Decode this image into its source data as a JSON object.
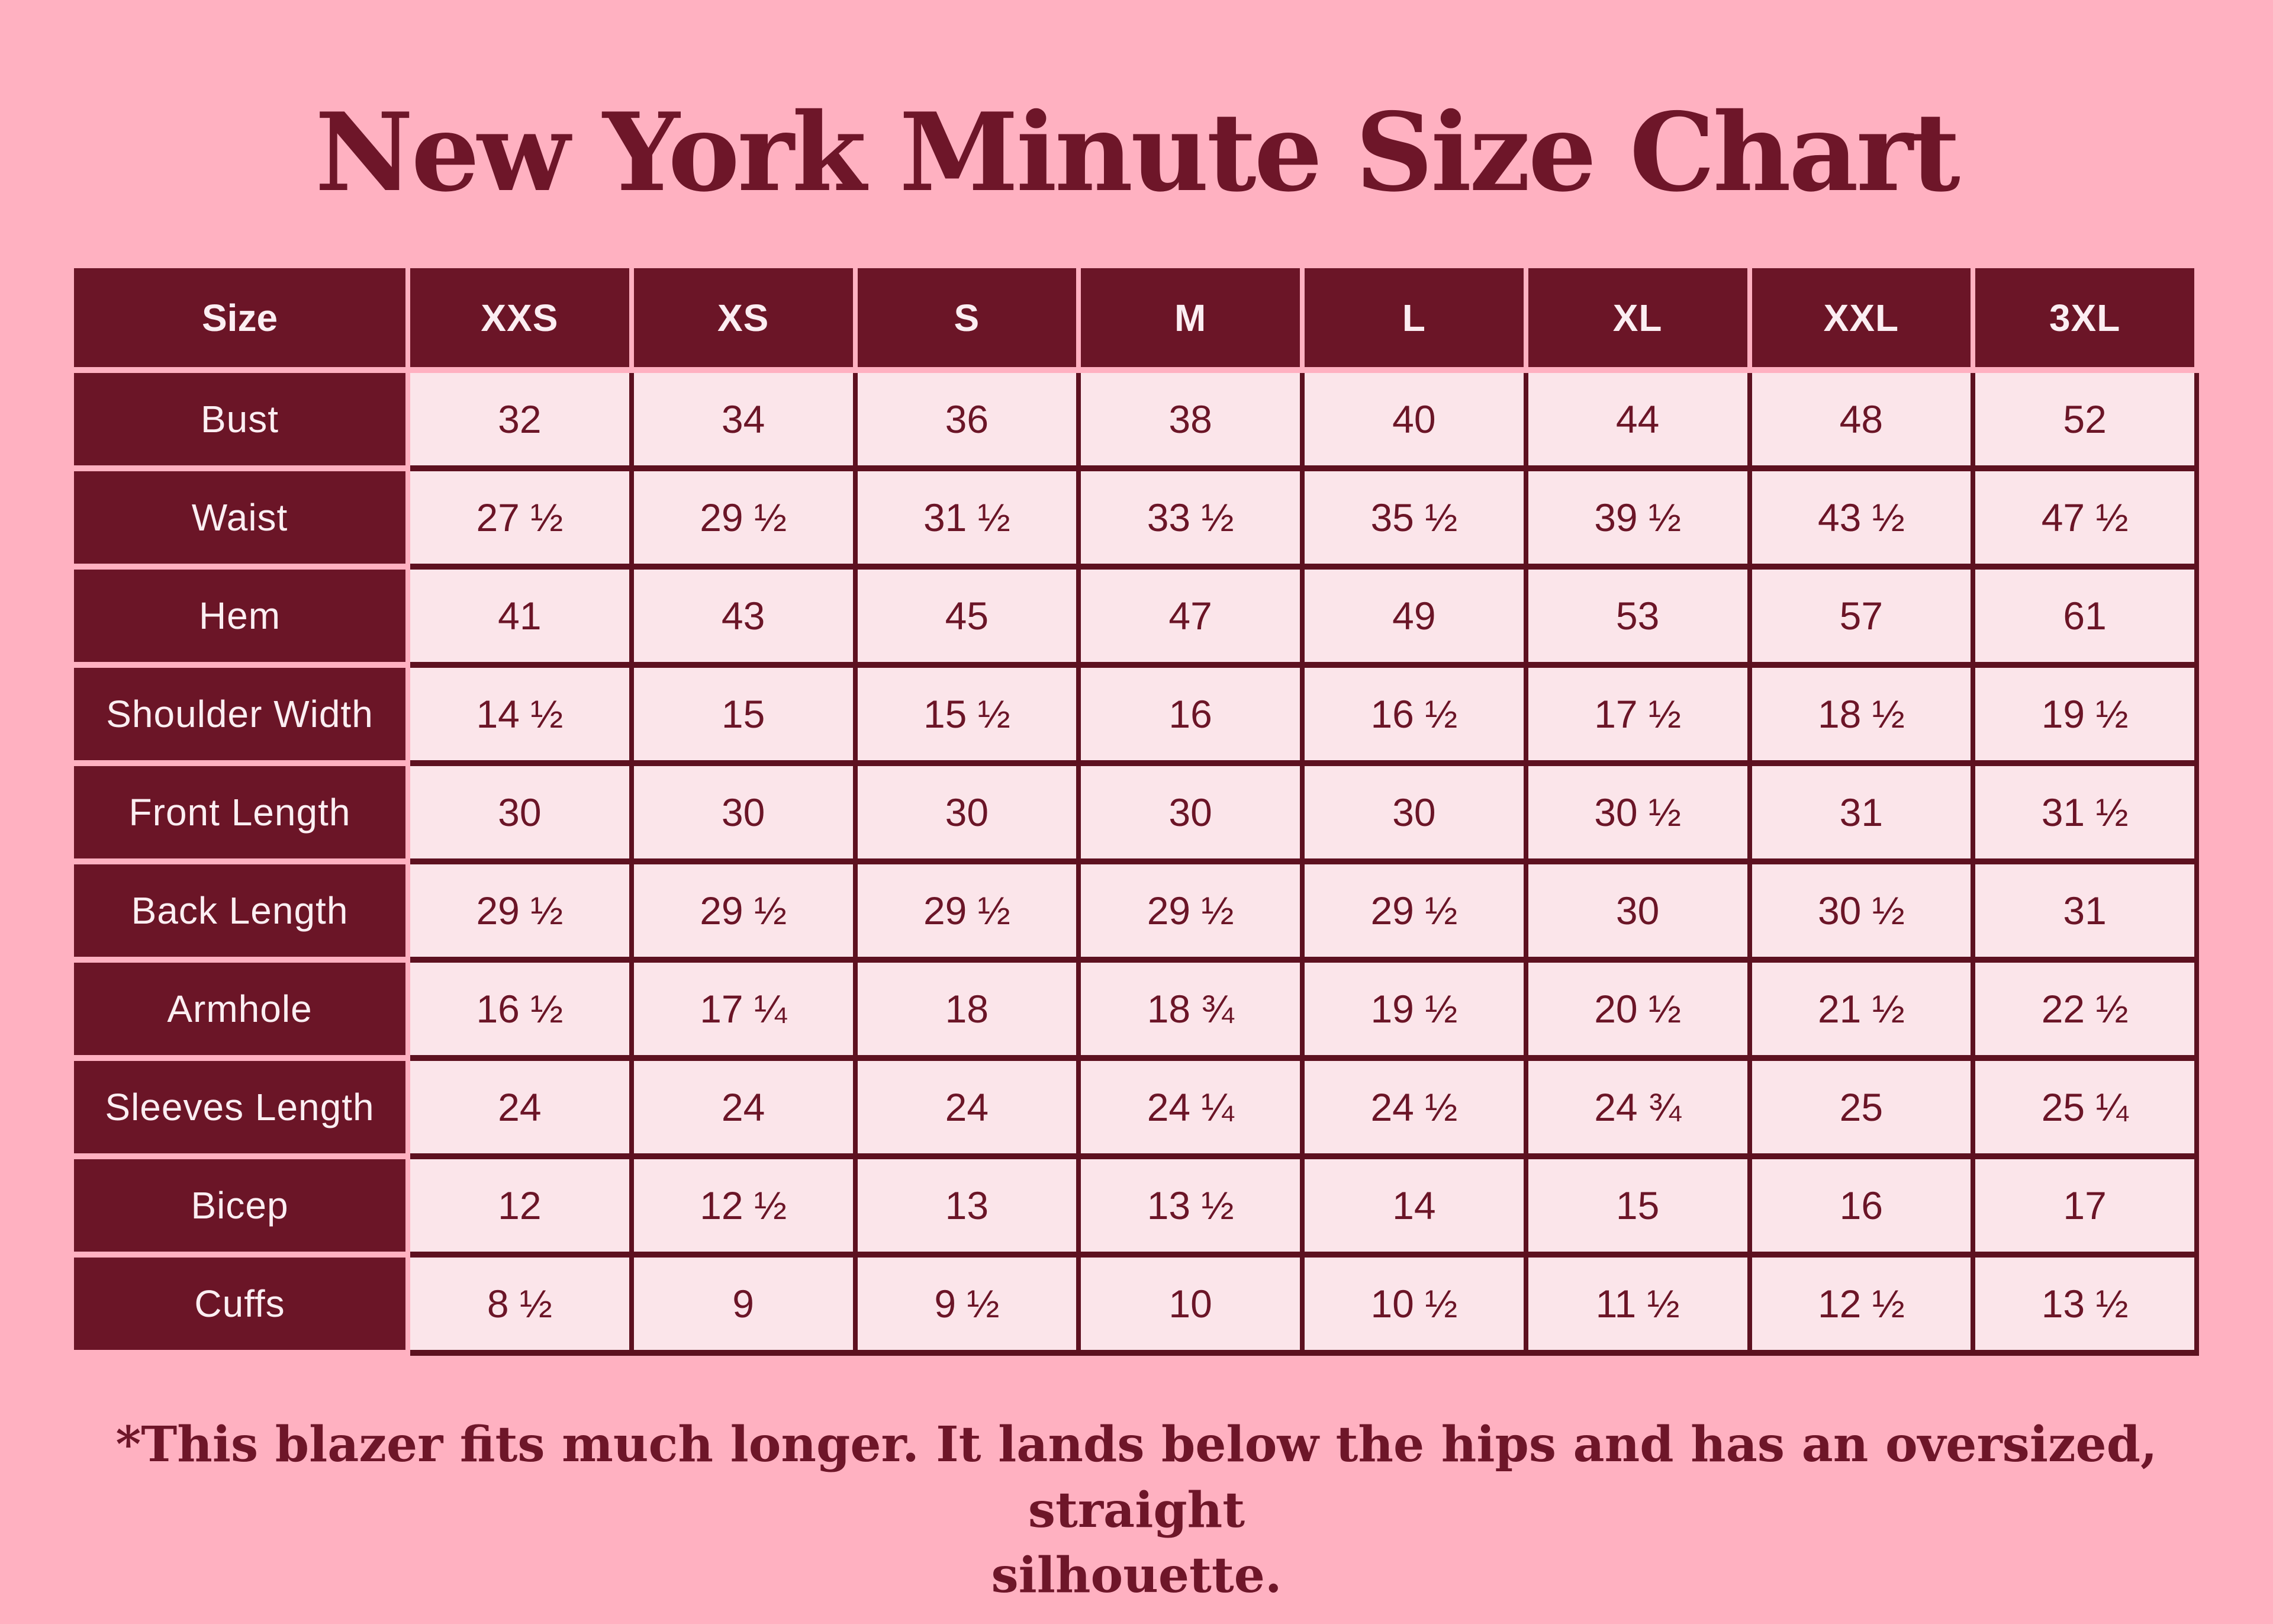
{
  "page": {
    "title": "New York Minute Size Chart"
  },
  "footnote": {
    "lines": [
      "*This blazer fits much longer. It lands below the hips and has an oversized, straight",
      "silhouette."
    ]
  },
  "colors": {
    "background_pink": "#ffb1c1",
    "maroon_header_bg": "#6b1527",
    "dark_border": "#5d1120",
    "light_cell_bg": "#fbe5ea",
    "title_text": "#6e1629",
    "header_text": "#fbeef2"
  },
  "table": {
    "corner_label": "Size",
    "size_headers": [
      "XXS",
      "XS",
      "S",
      "M",
      "L",
      "XL",
      "XXL",
      "3XL"
    ],
    "rows": [
      {
        "label": "Bust",
        "values": [
          "32",
          "34",
          "36",
          "38",
          "40",
          "44",
          "48",
          "52"
        ]
      },
      {
        "label": "Waist",
        "values": [
          "27 ½",
          "29 ½",
          "31 ½",
          "33 ½",
          "35 ½",
          "39 ½",
          "43 ½",
          "47 ½"
        ]
      },
      {
        "label": "Hem",
        "values": [
          "41",
          "43",
          "45",
          "47",
          "49",
          "53",
          "57",
          "61"
        ]
      },
      {
        "label": "Shoulder Width",
        "values": [
          "14 ½",
          "15",
          "15 ½",
          "16",
          "16 ½",
          "17 ½",
          "18 ½",
          "19 ½"
        ]
      },
      {
        "label": "Front Length",
        "values": [
          "30",
          "30",
          "30",
          "30",
          "30",
          "30 ½",
          "31",
          "31 ½"
        ]
      },
      {
        "label": "Back Length",
        "values": [
          "29 ½",
          "29 ½",
          "29 ½",
          "29 ½",
          "29 ½",
          "30",
          "30 ½",
          "31"
        ]
      },
      {
        "label": "Armhole",
        "values": [
          "16 ½",
          "17 ¼",
          "18",
          "18 ¾",
          "19 ½",
          "20 ½",
          "21 ½",
          "22 ½"
        ]
      },
      {
        "label": "Sleeves Length",
        "values": [
          "24",
          "24",
          "24",
          "24 ¼",
          "24 ½",
          "24 ¾",
          "25",
          "25 ¼"
        ]
      },
      {
        "label": "Bicep",
        "values": [
          "12",
          "12 ½",
          "13",
          "13 ½",
          "14",
          "15",
          "16",
          "17"
        ]
      },
      {
        "label": "Cuffs",
        "values": [
          "8 ½",
          "9",
          "9 ½",
          "10",
          "10 ½",
          "11 ½",
          "12 ½",
          "13 ½"
        ]
      }
    ]
  },
  "chart_data": {
    "type": "table",
    "title": "New York Minute Size Chart",
    "columns": [
      "Size",
      "XXS",
      "XS",
      "S",
      "M",
      "L",
      "XL",
      "XXL",
      "3XL"
    ],
    "rows": [
      [
        "Bust",
        "32",
        "34",
        "36",
        "38",
        "40",
        "44",
        "48",
        "52"
      ],
      [
        "Waist",
        "27 ½",
        "29 ½",
        "31 ½",
        "33 ½",
        "35 ½",
        "39 ½",
        "43 ½",
        "47 ½"
      ],
      [
        "Hem",
        "41",
        "43",
        "45",
        "47",
        "49",
        "53",
        "57",
        "61"
      ],
      [
        "Shoulder Width",
        "14 ½",
        "15",
        "15 ½",
        "16",
        "16 ½",
        "17 ½",
        "18 ½",
        "19 ½"
      ],
      [
        "Front Length",
        "30",
        "30",
        "30",
        "30",
        "30",
        "30 ½",
        "31",
        "31 ½"
      ],
      [
        "Back Length",
        "29 ½",
        "29 ½",
        "29 ½",
        "29 ½",
        "29 ½",
        "30",
        "30 ½",
        "31"
      ],
      [
        "Armhole",
        "16 ½",
        "17 ¼",
        "18",
        "18 ¾",
        "19 ½",
        "20 ½",
        "21 ½",
        "22 ½"
      ],
      [
        "Sleeves Length",
        "24",
        "24",
        "24",
        "24 ¼",
        "24 ½",
        "24 ¾",
        "25",
        "25 ¼"
      ],
      [
        "Bicep",
        "12",
        "12 ½",
        "13",
        "13 ½",
        "14",
        "15",
        "16",
        "17"
      ],
      [
        "Cuffs",
        "8 ½",
        "9",
        "9 ½",
        "10",
        "10 ½",
        "11 ½",
        "12 ½",
        "13 ½"
      ]
    ],
    "annotation": "*This blazer fits much longer. It lands below the hips and has an oversized, straight silhouette."
  }
}
